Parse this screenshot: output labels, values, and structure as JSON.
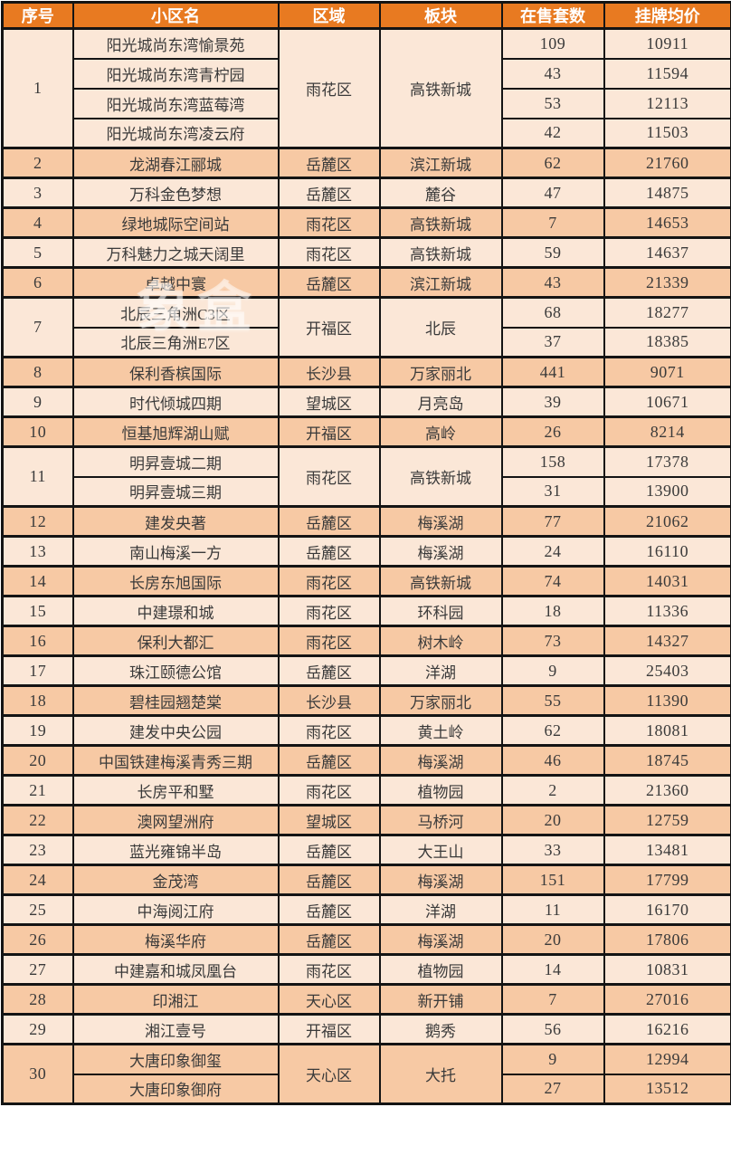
{
  "header": {
    "columns": [
      "序号",
      "小区名",
      "区域",
      "板块",
      "在售套数",
      "挂牌均价"
    ]
  },
  "watermark": {
    "text": "象盒"
  },
  "colors": {
    "header_bg": "#E87A21",
    "header_text": "#FFFFFF",
    "row_light": "#FBE7D7",
    "row_dark": "#F7C9A4",
    "border": "#141414",
    "body_text": "#3A3A3A"
  },
  "groups": [
    {
      "no": "1",
      "district": "雨花区",
      "area": "高铁新城",
      "units": [
        {
          "name": "阳光城尚东湾愉景苑",
          "count": "109",
          "price": "10911"
        },
        {
          "name": "阳光城尚东湾青柠园",
          "count": "43",
          "price": "11594"
        },
        {
          "name": "阳光城尚东湾蓝莓湾",
          "count": "53",
          "price": "12113"
        },
        {
          "name": "阳光城尚东湾凌云府",
          "count": "42",
          "price": "11503"
        }
      ]
    },
    {
      "no": "2",
      "district": "岳麓区",
      "area": "滨江新城",
      "units": [
        {
          "name": "龙湖春江郦城",
          "count": "62",
          "price": "21760"
        }
      ]
    },
    {
      "no": "3",
      "district": "岳麓区",
      "area": "麓谷",
      "units": [
        {
          "name": "万科金色梦想",
          "count": "47",
          "price": "14875"
        }
      ]
    },
    {
      "no": "4",
      "district": "雨花区",
      "area": "高铁新城",
      "units": [
        {
          "name": "绿地城际空间站",
          "count": "7",
          "price": "14653"
        }
      ]
    },
    {
      "no": "5",
      "district": "雨花区",
      "area": "高铁新城",
      "units": [
        {
          "name": "万科魅力之城天阔里",
          "count": "59",
          "price": "14637"
        }
      ]
    },
    {
      "no": "6",
      "district": "岳麓区",
      "area": "滨江新城",
      "units": [
        {
          "name": "卓越中寰",
          "count": "43",
          "price": "21339"
        }
      ]
    },
    {
      "no": "7",
      "district": "开福区",
      "area": "北辰",
      "units": [
        {
          "name": "北辰三角洲C3区",
          "count": "68",
          "price": "18277"
        },
        {
          "name": "北辰三角洲E7区",
          "count": "37",
          "price": "18385"
        }
      ]
    },
    {
      "no": "8",
      "district": "长沙县",
      "area": "万家丽北",
      "units": [
        {
          "name": "保利香槟国际",
          "count": "441",
          "price": "9071"
        }
      ]
    },
    {
      "no": "9",
      "district": "望城区",
      "area": "月亮岛",
      "units": [
        {
          "name": "时代倾城四期",
          "count": "39",
          "price": "10671"
        }
      ]
    },
    {
      "no": "10",
      "district": "开福区",
      "area": "高岭",
      "units": [
        {
          "name": "恒基旭辉湖山赋",
          "count": "26",
          "price": "8214"
        }
      ]
    },
    {
      "no": "11",
      "district": "雨花区",
      "area": "高铁新城",
      "units": [
        {
          "name": "明昇壹城二期",
          "count": "158",
          "price": "17378"
        },
        {
          "name": "明昇壹城三期",
          "count": "31",
          "price": "13900"
        }
      ]
    },
    {
      "no": "12",
      "district": "岳麓区",
      "area": "梅溪湖",
      "units": [
        {
          "name": "建发央著",
          "count": "77",
          "price": "21062"
        }
      ]
    },
    {
      "no": "13",
      "district": "岳麓区",
      "area": "梅溪湖",
      "units": [
        {
          "name": "南山梅溪一方",
          "count": "24",
          "price": "16110"
        }
      ]
    },
    {
      "no": "14",
      "district": "雨花区",
      "area": "高铁新城",
      "units": [
        {
          "name": "长房东旭国际",
          "count": "74",
          "price": "14031"
        }
      ]
    },
    {
      "no": "15",
      "district": "雨花区",
      "area": "环科园",
      "units": [
        {
          "name": "中建璟和城",
          "count": "18",
          "price": "11336"
        }
      ]
    },
    {
      "no": "16",
      "district": "雨花区",
      "area": "树木岭",
      "units": [
        {
          "name": "保利大都汇",
          "count": "73",
          "price": "14327"
        }
      ]
    },
    {
      "no": "17",
      "district": "岳麓区",
      "area": "洋湖",
      "units": [
        {
          "name": "珠江颐德公馆",
          "count": "9",
          "price": "25403"
        }
      ]
    },
    {
      "no": "18",
      "district": "长沙县",
      "area": "万家丽北",
      "units": [
        {
          "name": "碧桂园翘楚棠",
          "count": "55",
          "price": "11390"
        }
      ]
    },
    {
      "no": "19",
      "district": "雨花区",
      "area": "黄土岭",
      "units": [
        {
          "name": "建发中央公园",
          "count": "62",
          "price": "18081"
        }
      ]
    },
    {
      "no": "20",
      "district": "岳麓区",
      "area": "梅溪湖",
      "units": [
        {
          "name": "中国铁建梅溪青秀三期",
          "count": "46",
          "price": "18745"
        }
      ]
    },
    {
      "no": "21",
      "district": "雨花区",
      "area": "植物园",
      "units": [
        {
          "name": "长房平和墅",
          "count": "2",
          "price": "21360"
        }
      ]
    },
    {
      "no": "22",
      "district": "望城区",
      "area": "马桥河",
      "units": [
        {
          "name": "澳网望洲府",
          "count": "20",
          "price": "12759"
        }
      ]
    },
    {
      "no": "23",
      "district": "岳麓区",
      "area": "大王山",
      "units": [
        {
          "name": "蓝光雍锦半岛",
          "count": "33",
          "price": "13481"
        }
      ]
    },
    {
      "no": "24",
      "district": "岳麓区",
      "area": "梅溪湖",
      "units": [
        {
          "name": "金茂湾",
          "count": "151",
          "price": "17799"
        }
      ]
    },
    {
      "no": "25",
      "district": "岳麓区",
      "area": "洋湖",
      "units": [
        {
          "name": "中海阅江府",
          "count": "11",
          "price": "16170"
        }
      ]
    },
    {
      "no": "26",
      "district": "岳麓区",
      "area": "梅溪湖",
      "units": [
        {
          "name": "梅溪华府",
          "count": "20",
          "price": "17806"
        }
      ]
    },
    {
      "no": "27",
      "district": "雨花区",
      "area": "植物园",
      "units": [
        {
          "name": "中建嘉和城凤凰台",
          "count": "14",
          "price": "10831"
        }
      ]
    },
    {
      "no": "28",
      "district": "天心区",
      "area": "新开铺",
      "units": [
        {
          "name": "印湘江",
          "count": "7",
          "price": "27016"
        }
      ]
    },
    {
      "no": "29",
      "district": "开福区",
      "area": "鹅秀",
      "units": [
        {
          "name": "湘江壹号",
          "count": "56",
          "price": "16216"
        }
      ]
    },
    {
      "no": "30",
      "district": "天心区",
      "area": "大托",
      "units": [
        {
          "name": "大唐印象御玺",
          "count": "9",
          "price": "12994"
        },
        {
          "name": "大唐印象御府",
          "count": "27",
          "price": "13512"
        }
      ]
    }
  ]
}
